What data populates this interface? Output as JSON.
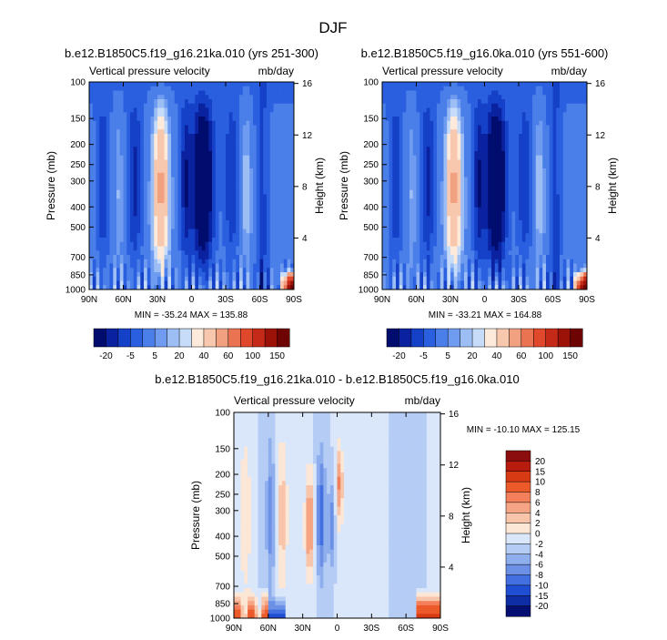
{
  "figure": {
    "title": "DJF"
  },
  "chart_data": [
    {
      "type": "heatmap",
      "title": "b.e12.B1850C5.f19_g16.21ka.010 (yrs 251-300)",
      "left_subtitle": "Vertical pressure velocity",
      "right_subtitle": "mb/day",
      "ylabel": "Pressure (mb)",
      "ylabel_right": "Height (km)",
      "x_ticks": [
        "90N",
        "60N",
        "30N",
        "0",
        "30S",
        "60S",
        "90S"
      ],
      "x_values": [
        90,
        60,
        30,
        0,
        -30,
        -60,
        -90
      ],
      "y_ticks": [
        "100",
        "150",
        "200",
        "250",
        "300",
        "400",
        "500",
        "700",
        "850",
        "1000"
      ],
      "y_values": [
        100,
        150,
        200,
        250,
        300,
        400,
        500,
        700,
        850,
        1000
      ],
      "y_right_ticks": [
        "16",
        "12",
        "8",
        "4"
      ],
      "y_right_values": [
        16,
        12,
        8,
        4
      ],
      "ylim": [
        1000,
        100
      ],
      "xlim": [
        90,
        -90
      ],
      "stats": "MIN = -35.24   MAX = 135.88",
      "colorbar": {
        "orientation": "horizontal",
        "levels": [
          "-20",
          "-5",
          "5",
          "20",
          "40",
          "60",
          "100",
          "150"
        ],
        "colors": [
          "#000c6e",
          "#0a22a0",
          "#1540c8",
          "#2a5fe0",
          "#4a7ee8",
          "#6f9cf0",
          "#9cbef5",
          "#c6dcf9",
          "#fdeadb",
          "#f7c8ae",
          "#f1a080",
          "#ea7452",
          "#e0482c",
          "#c42a17",
          "#9c1209",
          "#6e0303"
        ]
      }
    },
    {
      "type": "heatmap",
      "title": "b.e12.B1850C5.f19_g16.0ka.010 (yrs 551-600)",
      "left_subtitle": "Vertical pressure velocity",
      "right_subtitle": "mb/day",
      "ylabel": "Pressure (mb)",
      "ylabel_right": "Height (km)",
      "x_ticks": [
        "90N",
        "60N",
        "30N",
        "0",
        "30S",
        "60S",
        "90S"
      ],
      "x_values": [
        90,
        60,
        30,
        0,
        -30,
        -60,
        -90
      ],
      "y_ticks": [
        "100",
        "150",
        "200",
        "250",
        "300",
        "400",
        "500",
        "700",
        "850",
        "1000"
      ],
      "y_values": [
        100,
        150,
        200,
        250,
        300,
        400,
        500,
        700,
        850,
        1000
      ],
      "y_right_ticks": [
        "16",
        "12",
        "8",
        "4"
      ],
      "y_right_values": [
        16,
        12,
        8,
        4
      ],
      "ylim": [
        1000,
        100
      ],
      "xlim": [
        90,
        -90
      ],
      "stats": "MIN = -33.21   MAX = 164.88",
      "colorbar": {
        "orientation": "horizontal",
        "levels": [
          "-20",
          "-5",
          "5",
          "20",
          "40",
          "60",
          "100",
          "150"
        ],
        "colors": [
          "#000c6e",
          "#0a22a0",
          "#1540c8",
          "#2a5fe0",
          "#4a7ee8",
          "#6f9cf0",
          "#9cbef5",
          "#c6dcf9",
          "#fdeadb",
          "#f7c8ae",
          "#f1a080",
          "#ea7452",
          "#e0482c",
          "#c42a17",
          "#9c1209",
          "#6e0303"
        ]
      }
    },
    {
      "type": "heatmap",
      "title": "b.e12.B1850C5.f19_g16.21ka.010 - b.e12.B1850C5.f19_g16.0ka.010",
      "left_subtitle": "Vertical pressure velocity",
      "right_subtitle": "mb/day",
      "ylabel": "Pressure (mb)",
      "ylabel_right": "Height (km)",
      "x_ticks": [
        "90N",
        "60N",
        "30N",
        "0",
        "30S",
        "60S",
        "90S"
      ],
      "x_values": [
        90,
        60,
        30,
        0,
        -30,
        -60,
        -90
      ],
      "y_ticks": [
        "100",
        "150",
        "200",
        "250",
        "300",
        "400",
        "500",
        "700",
        "850",
        "1000"
      ],
      "y_values": [
        100,
        150,
        200,
        250,
        300,
        400,
        500,
        700,
        850,
        1000
      ],
      "y_right_ticks": [
        "16",
        "12",
        "8",
        "4"
      ],
      "y_right_values": [
        16,
        12,
        8,
        4
      ],
      "ylim": [
        1000,
        100
      ],
      "xlim": [
        90,
        -90
      ],
      "stats": "MIN = -10.10   MAX = 125.15",
      "colorbar": {
        "orientation": "vertical",
        "levels": [
          "20",
          "15",
          "10",
          "8",
          "6",
          "4",
          "2",
          "0",
          "-2",
          "-4",
          "-6",
          "-8",
          "-10",
          "-15",
          "-20"
        ],
        "colors": [
          "#8c0d0d",
          "#b81c0c",
          "#d83a14",
          "#ec5a2a",
          "#f3805a",
          "#f6a584",
          "#f8c5aa",
          "#fce7d6",
          "#dae7fb",
          "#b5ccf5",
          "#8eaeee",
          "#6b90e6",
          "#4270e0",
          "#1f4ed2",
          "#0e2ea5",
          "#050f72"
        ]
      }
    }
  ]
}
